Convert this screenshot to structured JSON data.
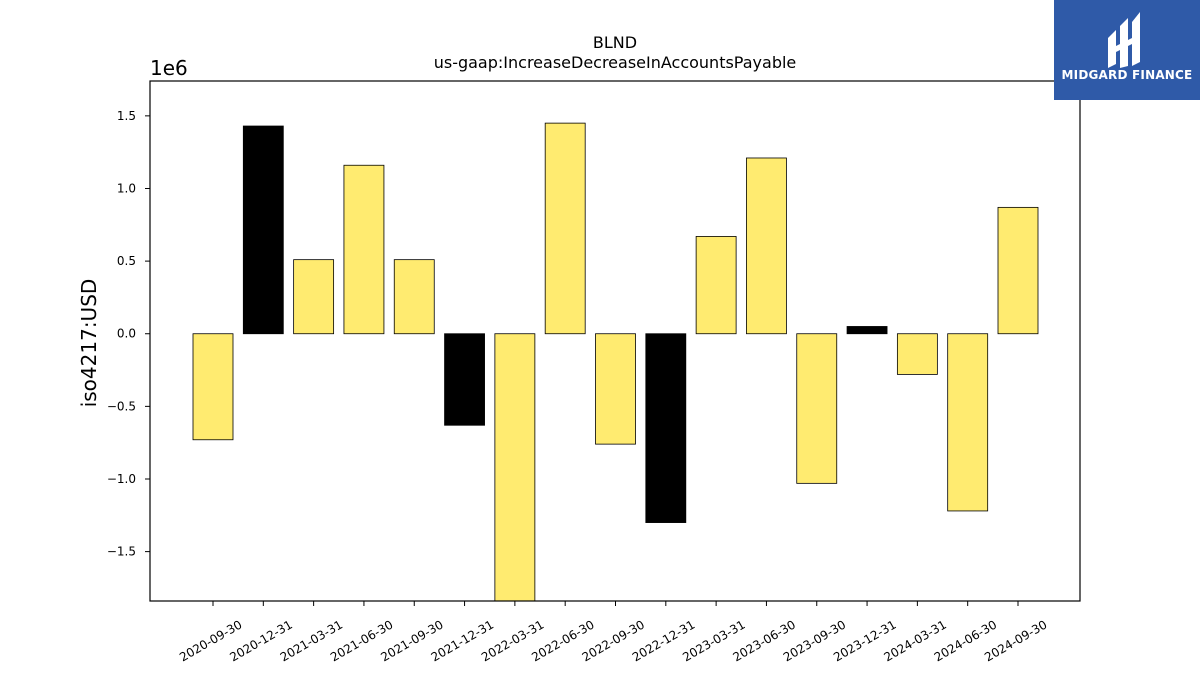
{
  "chart_data": {
    "type": "bar",
    "title": "BLND",
    "subtitle": "us-gaap:IncreaseDecreaseInAccountsPayable",
    "ylabel": "iso4217:USD",
    "xlabel": "",
    "y_offset_label": "1e6",
    "ylim": [
      -1840000,
      1740000
    ],
    "yticks": [
      -1.5,
      -1.0,
      -0.5,
      0.0,
      0.5,
      1.0,
      1.5
    ],
    "ytick_labels": [
      "−1.5",
      "−1.0",
      "−0.5",
      "0.0",
      "0.5",
      "1.0",
      "1.5"
    ],
    "categories": [
      "2020-09-30",
      "2020-12-31",
      "2021-03-31",
      "2021-06-30",
      "2021-09-30",
      "2021-12-31",
      "2022-03-31",
      "2022-06-30",
      "2022-09-30",
      "2022-12-31",
      "2023-03-31",
      "2023-06-30",
      "2023-09-30",
      "2023-12-31",
      "2024-03-31",
      "2024-06-30",
      "2024-09-30"
    ],
    "values": [
      -730000,
      1430000,
      510000,
      1160000,
      510000,
      -630000,
      -1840000,
      1450000,
      -760000,
      -1300000,
      670000,
      1210000,
      -1030000,
      50000,
      -280000,
      -1220000,
      870000
    ],
    "bar_colors": [
      "#ffeb70",
      "#000000",
      "#ffeb70",
      "#ffeb70",
      "#ffeb70",
      "#000000",
      "#ffeb70",
      "#ffeb70",
      "#ffeb70",
      "#000000",
      "#ffeb70",
      "#ffeb70",
      "#ffeb70",
      "#000000",
      "#ffeb70",
      "#ffeb70",
      "#ffeb70"
    ],
    "grid": false,
    "legend": "none"
  },
  "logo": {
    "text": "MIDGARD FINANCE",
    "background": "#2f5aa8",
    "icon": "midgard-logo-icon"
  }
}
